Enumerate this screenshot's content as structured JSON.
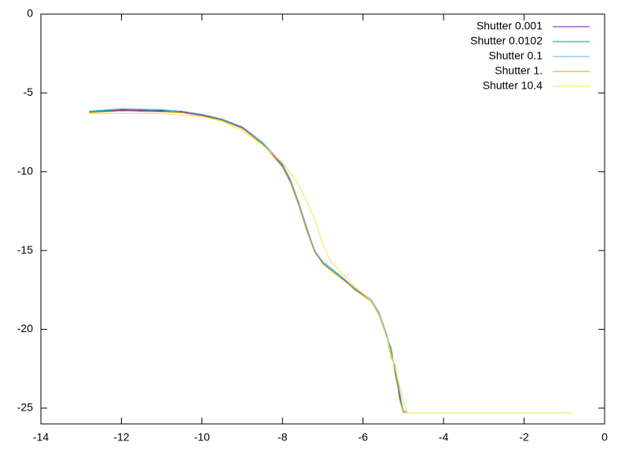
{
  "chart_data": {
    "type": "line",
    "xlim": [
      -14,
      0
    ],
    "ylim": [
      -26,
      0
    ],
    "xticks": [
      -14,
      -12,
      -10,
      -8,
      -6,
      -4,
      -2,
      0
    ],
    "yticks": [
      0,
      -5,
      -10,
      -15,
      -20,
      -25
    ],
    "legend": "top-right",
    "series": [
      {
        "name": "Shutter 0.001",
        "color": "#9400d3",
        "x": [
          -12.8,
          -12,
          -11,
          -10.5,
          -10,
          -9.5,
          -9,
          -8.5,
          -8,
          -7.8,
          -7.6,
          -7.4,
          -7.2,
          -7,
          -6.6,
          -6.2,
          -5.8,
          -5.6,
          -5.4,
          -5.3,
          -5.2,
          -5.1,
          -5.0,
          -4.9
        ],
        "values": [
          -6.2,
          -6.1,
          -6.15,
          -6.2,
          -6.4,
          -6.7,
          -7.2,
          -8.2,
          -9.6,
          -10.6,
          -12,
          -13.6,
          -15,
          -15.8,
          -16.6,
          -17.4,
          -18.2,
          -19,
          -20.5,
          -21.5,
          -22.5,
          -24,
          -25.2,
          -25.2
        ]
      },
      {
        "name": "Shutter 0.0102",
        "color": "#009e73",
        "x": [
          -12.8,
          -12,
          -11,
          -10.5,
          -10,
          -9.5,
          -9,
          -8.5,
          -8,
          -7.8,
          -7.6,
          -7.4,
          -7.2,
          -7,
          -6.6,
          -6.2,
          -5.8,
          -5.6,
          -5.4,
          -5.3,
          -5.2,
          -5.1,
          -5.0,
          -4.9
        ],
        "values": [
          -6.2,
          -6.05,
          -6.1,
          -6.25,
          -6.45,
          -6.7,
          -7.25,
          -8.2,
          -9.7,
          -10.7,
          -12.1,
          -13.7,
          -15.1,
          -15.8,
          -16.6,
          -17.5,
          -18.2,
          -19.1,
          -20.6,
          -21.2,
          -22.8,
          -24.2,
          -25.2,
          -25.2
        ]
      },
      {
        "name": "Shutter 0.1",
        "color": "#56b4e9",
        "x": [
          -12.8,
          -12,
          -11,
          -10.5,
          -10,
          -9.5,
          -9,
          -8.5,
          -8,
          -7.8,
          -7.6,
          -7.4,
          -7.2,
          -7,
          -6.6,
          -6.2,
          -5.8,
          -5.6,
          -5.4,
          -5.3,
          -5.2,
          -5.1,
          -5.0,
          -4.9
        ],
        "values": [
          -6.15,
          -6.0,
          -6.05,
          -6.15,
          -6.35,
          -6.65,
          -7.15,
          -8.1,
          -9.5,
          -10.5,
          -11.9,
          -13.5,
          -15,
          -15.7,
          -16.5,
          -17.4,
          -18.1,
          -18.9,
          -20.4,
          -21.6,
          -22.4,
          -23.8,
          -25.2,
          -25.2
        ]
      },
      {
        "name": "Shutter 1.",
        "color": "#e69f00",
        "x": [
          -12.8,
          -12,
          -11,
          -10.5,
          -10,
          -9.5,
          -9,
          -8.5,
          -8,
          -7.8,
          -7.6,
          -7.4,
          -7.2,
          -7,
          -6.6,
          -6.2,
          -5.8,
          -5.6,
          -5.4,
          -5.3,
          -5.2,
          -5.1,
          -5.0,
          -4.9
        ],
        "values": [
          -6.25,
          -6.15,
          -6.2,
          -6.25,
          -6.45,
          -6.75,
          -7.25,
          -8.25,
          -9.65,
          -10.65,
          -12.05,
          -13.65,
          -15.05,
          -15.85,
          -16.65,
          -17.45,
          -18.25,
          -19.05,
          -20.6,
          -21.8,
          -22.3,
          -24.4,
          -25.3,
          -25.3
        ]
      },
      {
        "name": "Shutter 10.4",
        "color": "#f0e442",
        "x": [
          -12.8,
          -11,
          -10,
          -9.5,
          -9,
          -8.5,
          -8,
          -7.6,
          -7.2,
          -7,
          -6.8,
          -6.5,
          -6.2,
          -5.8,
          -5.6,
          -5.4,
          -5.2,
          -5.0,
          -4.9,
          -0.8
        ],
        "values": [
          -6.3,
          -6.3,
          -6.5,
          -6.8,
          -7.4,
          -8.3,
          -9.4,
          -10.8,
          -13,
          -14.6,
          -15.7,
          -16.5,
          -17.3,
          -18.2,
          -19,
          -20.6,
          -22.5,
          -24.5,
          -25.3,
          -25.3
        ]
      }
    ]
  }
}
